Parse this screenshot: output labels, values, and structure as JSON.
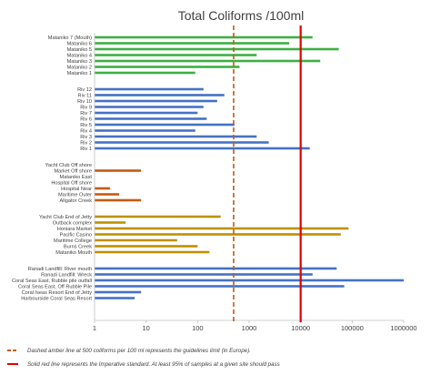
{
  "chart_data": {
    "type": "bar",
    "orientation": "horizontal",
    "title": "Total Coliforms /100ml",
    "x_scale": "log",
    "xlim": [
      1,
      1000000
    ],
    "x_ticks": [
      "1",
      "10",
      "100",
      "1000",
      "10000",
      "100000",
      "1000000"
    ],
    "x_tick_values": [
      1,
      10,
      100,
      1000,
      10000,
      100000,
      1000000
    ],
    "grid": false,
    "reference_lines": [
      {
        "value": 500,
        "style": "dashed",
        "color": "#c55a11"
      },
      {
        "value": 10000,
        "style": "solid",
        "color": "#e00000"
      }
    ],
    "groups": [
      {
        "color": "#3cb043",
        "categories": [
          {
            "label": "Mataniko 7 (Mouth)",
            "value": 17000
          },
          {
            "label": "Mataniko 6",
            "value": 6000
          },
          {
            "label": "Mataniko 5",
            "value": 55000
          },
          {
            "label": "Mataniko 4",
            "value": 1400
          },
          {
            "label": "Mataniko 3",
            "value": 24000
          },
          {
            "label": "Mataniko 2",
            "value": 650
          },
          {
            "label": "Mataniko 1",
            "value": 90
          }
        ]
      },
      {
        "color": "#4472c4",
        "categories": [
          {
            "label": "Riv 12",
            "value": 130
          },
          {
            "label": "Riv 11",
            "value": 330
          },
          {
            "label": "Riv 10",
            "value": 240
          },
          {
            "label": "Riv 9",
            "value": 130
          },
          {
            "label": "Riv 7",
            "value": 100
          },
          {
            "label": "Riv 6",
            "value": 150
          },
          {
            "label": "Riv 5",
            "value": 520
          },
          {
            "label": "Riv 4",
            "value": 90
          },
          {
            "label": "Riv 3",
            "value": 1400
          },
          {
            "label": "Riv 2",
            "value": 2400
          },
          {
            "label": "Riv 1",
            "value": 15000
          }
        ]
      },
      {
        "color": "#c55a11",
        "categories": [
          {
            "label": "Yacht Club Off shore",
            "value": null
          },
          {
            "label": "Market Off shore",
            "value": 8
          },
          {
            "label": "Mataniko East",
            "value": null
          },
          {
            "label": "Hospital Off shore",
            "value": null
          },
          {
            "label": "Hospital Near",
            "value": 2
          },
          {
            "label": "Maritime Outer",
            "value": 3
          },
          {
            "label": "Aligator Creek",
            "value": 8
          }
        ]
      },
      {
        "color": "#bf9000",
        "categories": [
          {
            "label": "Yacht Club End of Jetty",
            "value": 280
          },
          {
            "label": "Outback complex",
            "value": 4
          },
          {
            "label": "Honiara Market",
            "value": 85000
          },
          {
            "label": "Pacific Casino",
            "value": 60000
          },
          {
            "label": "Maritime College",
            "value": 40
          },
          {
            "label": "Burns Creek",
            "value": 100
          },
          {
            "label": "Mataniko Mouth",
            "value": 170
          }
        ]
      },
      {
        "color": "#4472c4",
        "categories": [
          {
            "label": "Ranadi Landfill: River mouth",
            "value": 50000
          },
          {
            "label": "Ranadi Landfill: Wreck",
            "value": 17000
          },
          {
            "label": "Coral Seas East, Rubble pile outfall",
            "value": 1000000
          },
          {
            "label": "Coral Seas East, Off Rubble Pile",
            "value": 70000
          },
          {
            "label": "Coral /seas Resort End of Jetty",
            "value": 8
          },
          {
            "label": "Harbourside Coral Seas Resort",
            "value": 6
          }
        ]
      }
    ],
    "legend": [
      {
        "style": "dashed",
        "color": "#c55a11",
        "text": "Dashed amber line at 500 coliforms per 100 ml represents the guidelines limit (in Europe)."
      },
      {
        "style": "solid",
        "color": "#e00000",
        "text": "Solid red line represents the Imperative standard. At least 95% of samples at a given site should pass"
      }
    ]
  }
}
